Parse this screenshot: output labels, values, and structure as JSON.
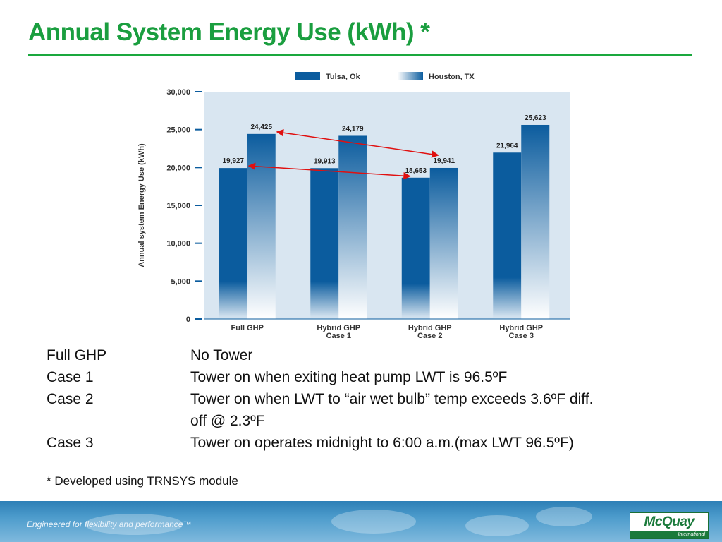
{
  "title": "Annual System Energy Use (kWh) *",
  "chart_data": {
    "type": "bar",
    "categories": [
      [
        "Full GHP"
      ],
      [
        "Hybrid GHP",
        "Case 1"
      ],
      [
        "Hybrid GHP",
        "Case 2"
      ],
      [
        "Hybrid GHP",
        "Case 3"
      ]
    ],
    "series": [
      {
        "name": "Tulsa, Ok",
        "values": [
          19927,
          19913,
          18653,
          21964
        ],
        "labels": [
          "19,927",
          "19,913",
          "18,653",
          "21,964"
        ]
      },
      {
        "name": "Houston, TX",
        "values": [
          24425,
          24179,
          19941,
          25623
        ],
        "labels": [
          "24,425",
          "24,179",
          "19,941",
          "25,623"
        ]
      }
    ],
    "ylabel": "Annual system Energy Use (kWh)",
    "ylim": [
      0,
      30000
    ],
    "yticks": [
      {
        "value": 0,
        "label": "0"
      },
      {
        "value": 5000,
        "label": "5,000"
      },
      {
        "value": 10000,
        "label": "10,000"
      },
      {
        "value": 15000,
        "label": "15,000"
      },
      {
        "value": 20000,
        "label": "20,000"
      },
      {
        "value": 25000,
        "label": "25,000"
      },
      {
        "value": 30000,
        "label": "30,000"
      }
    ],
    "legend_position": "top",
    "annotations": [
      {
        "type": "arrow",
        "from": {
          "category": 0,
          "series": 1
        },
        "to": {
          "category": 2,
          "series": 1
        },
        "color": "#e01010"
      },
      {
        "type": "arrow",
        "from": {
          "category": 0,
          "series": 0
        },
        "to": {
          "category": 2,
          "series": 0
        },
        "color": "#e01010"
      }
    ],
    "colors": {
      "tulsa": "#0b5c9e",
      "houston_top": "#0b5c9e",
      "houston_bottom": "#ffffff",
      "plot_bg": "#d9e6f1"
    }
  },
  "notes": [
    {
      "term": "Full GHP",
      "desc": [
        "No Tower"
      ]
    },
    {
      "term": "Case 1",
      "desc": [
        "Tower on when exiting heat pump LWT is 96.5ºF"
      ]
    },
    {
      "term": "Case 2",
      "desc": [
        "Tower on when LWT to “air wet bulb” temp exceeds 3.6ºF diff.",
        "off @ 2.3ºF"
      ]
    },
    {
      "term": "Case 3",
      "desc": [
        "Tower on operates midnight to 6:00 a.m.(max LWT 96.5ºF)"
      ]
    }
  ],
  "footnote": "* Developed using TRNSYS module",
  "footer": {
    "tagline": "Engineered for flexibility and performance™  |",
    "logo_text": "McQuay",
    "logo_sub": "International"
  }
}
